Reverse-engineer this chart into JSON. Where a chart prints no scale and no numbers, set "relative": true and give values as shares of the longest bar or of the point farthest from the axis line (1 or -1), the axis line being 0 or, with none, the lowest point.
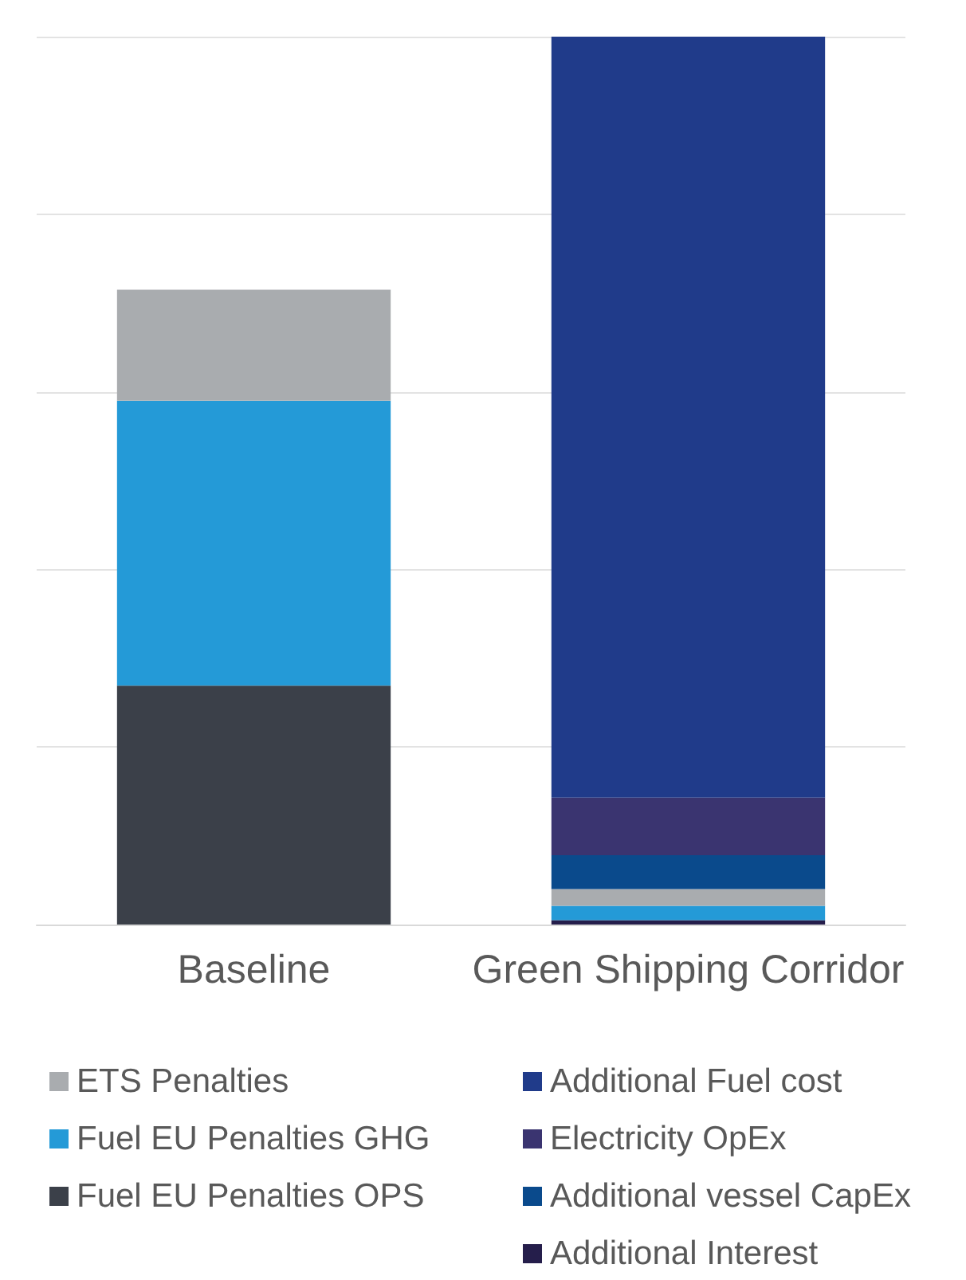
{
  "chart_data": {
    "type": "bar",
    "stacked": true,
    "relative": true,
    "grid": "y",
    "legend": "bottom",
    "categories": [
      "Baseline",
      "Green Shipping Corridor"
    ],
    "series": [
      {
        "name": "Fuel EU Penalties OPS",
        "color": "#3b4049",
        "values": [
          0.269,
          0
        ]
      },
      {
        "name": "Additional Interest",
        "color": "#251e4b",
        "values": [
          0,
          0.005
        ]
      },
      {
        "name": "Fuel EU Penalties GHG",
        "color": "#249ad7",
        "values": [
          0.321,
          0.016
        ]
      },
      {
        "name": "ETS Penalties",
        "color": "#a9acaf",
        "values": [
          0.125,
          0.019
        ]
      },
      {
        "name": "Additional vessel CapEx",
        "color": "#0a4a8c",
        "values": [
          0,
          0.038
        ]
      },
      {
        "name": "Electricity OpEx",
        "color": "#3a3470",
        "values": [
          0,
          0.065
        ]
      },
      {
        "name": "Additional Fuel cost",
        "color": "#203b8a",
        "values": [
          0,
          0.857
        ]
      }
    ]
  }
}
